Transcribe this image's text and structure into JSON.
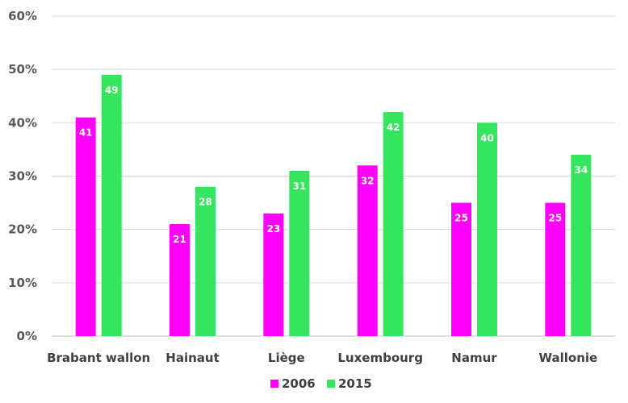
{
  "chart_data": {
    "type": "bar",
    "title": "",
    "xlabel": "",
    "ylabel": "",
    "categories": [
      "Brabant wallon",
      "Hainaut",
      "Liège",
      "Luxembourg",
      "Namur",
      "Wallonie"
    ],
    "series": [
      {
        "name": "2006",
        "color": "#ff00ff",
        "values": [
          41,
          21,
          23,
          32,
          25,
          25
        ],
        "labels": [
          "41",
          "21",
          "23",
          "32",
          "25",
          "25"
        ]
      },
      {
        "name": "2015",
        "color": "#33e65e",
        "values": [
          49,
          28,
          31,
          42,
          40,
          34
        ],
        "labels": [
          "49",
          "28",
          "31",
          "42",
          "40",
          "34"
        ]
      }
    ],
    "ylim": [
      0,
      60
    ],
    "yticks": [
      0,
      10,
      20,
      30,
      40,
      50,
      60
    ],
    "ytick_labels": [
      "0%",
      "10%",
      "20%",
      "30%",
      "40%",
      "50%",
      "60%"
    ],
    "grid": true,
    "legend_position": "bottom-center"
  }
}
